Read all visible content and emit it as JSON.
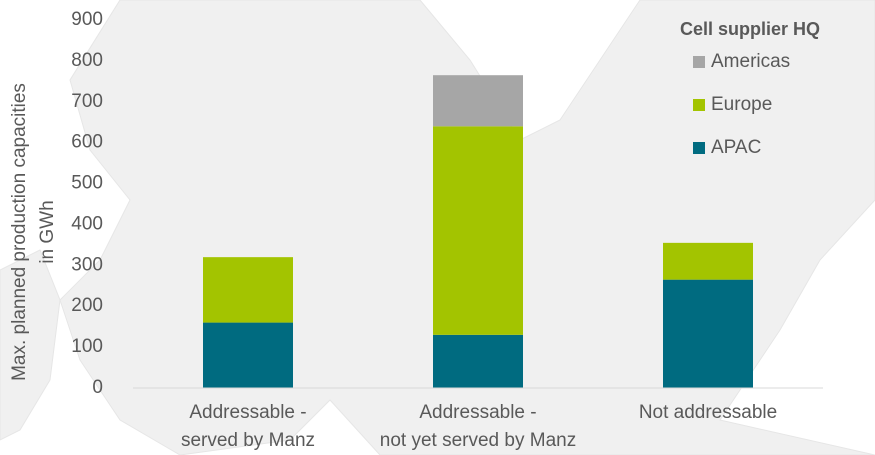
{
  "chart_data": {
    "type": "stacked_bar",
    "ylabel": [
      "Max. planned production capacities",
      "in GWh"
    ],
    "categories": [
      [
        "Addressable -",
        "served by Manz"
      ],
      [
        "Addressable -",
        "not yet served by Manz"
      ],
      [
        "Not addressable"
      ]
    ],
    "series": [
      {
        "name": "APAC",
        "color": "#006b80",
        "values": [
          160,
          130,
          265
        ]
      },
      {
        "name": "Europe",
        "color": "#a3c400",
        "values": [
          160,
          510,
          90
        ]
      },
      {
        "name": "Americas",
        "color": "#a6a6a6",
        "values": [
          0,
          125,
          0
        ]
      }
    ],
    "ylim": [
      0,
      900
    ],
    "yticks": [
      0,
      100,
      200,
      300,
      400,
      500,
      600,
      700,
      800,
      900
    ],
    "legend_title": "Cell supplier HQ",
    "legend_position": "upper right"
  }
}
